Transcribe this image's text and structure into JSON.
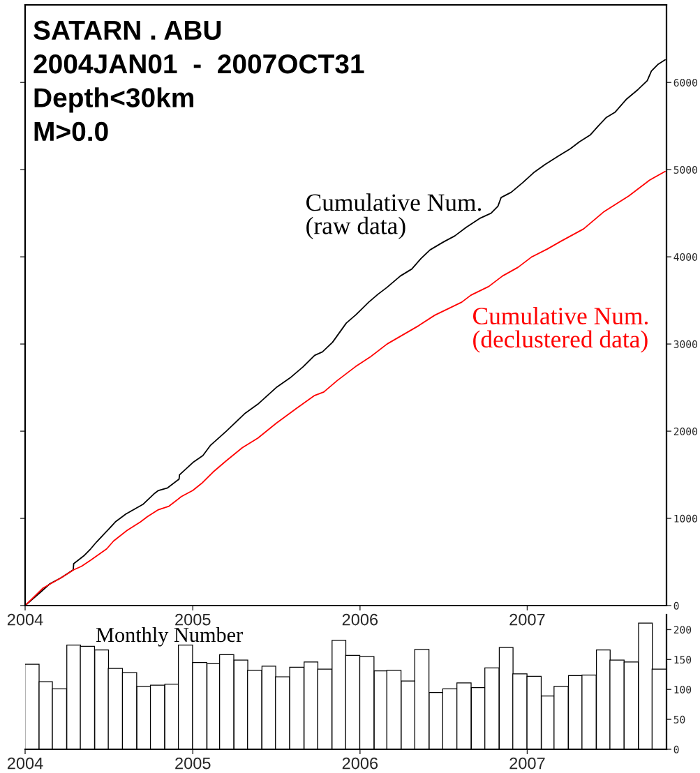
{
  "chart_data": [
    {
      "type": "line",
      "title": "SATARN . ABU\n2004JAN01  -  2007OCT31\nDepth<30km\nM>0.0",
      "xlim": [
        "2004-01-01",
        "2007-11-01"
      ],
      "xticks": [
        {
          "value": "2004-01-01",
          "label": "2004"
        },
        {
          "value": "2005-01-01",
          "label": "2005"
        },
        {
          "value": "2006-01-01",
          "label": "2006"
        },
        {
          "value": "2007-01-01",
          "label": "2007"
        }
      ],
      "ylim": [
        0,
        6890
      ],
      "yticks": [
        0,
        1000,
        2000,
        3000,
        4000,
        5000,
        6000
      ],
      "series": [
        {
          "name": "Cumulative Num.\n(raw data)",
          "color": "#000000",
          "x": [
            "2004-01-01",
            "2004-02-05",
            "2004-02-24",
            "2004-03-20",
            "2004-04-15",
            "2004-04-16",
            "2004-05-08",
            "2004-05-23",
            "2004-06-05",
            "2004-07-02",
            "2004-07-16",
            "2004-08-08",
            "2004-09-14",
            "2004-10-08",
            "2004-10-18",
            "2004-11-07",
            "2004-12-02",
            "2004-12-03",
            "2005-01-01",
            "2005-01-23",
            "2005-02-09",
            "2005-03-15",
            "2005-04-24",
            "2005-05-23",
            "2005-07-02",
            "2005-08-01",
            "2005-08-30",
            "2005-09-24",
            "2005-10-11",
            "2005-11-02",
            "2005-12-02",
            "2005-12-24",
            "2006-01-20",
            "2006-02-09",
            "2006-03-01",
            "2006-03-30",
            "2006-04-24",
            "2006-05-14",
            "2006-06-03",
            "2006-07-02",
            "2006-07-27",
            "2006-08-21",
            "2006-09-19",
            "2006-10-14",
            "2006-10-29",
            "2006-11-05",
            "2006-11-27",
            "2006-12-22",
            "2007-01-16",
            "2007-02-09",
            "2007-03-11",
            "2007-04-05",
            "2007-04-25",
            "2007-05-19",
            "2007-06-05",
            "2007-06-23",
            "2007-07-12",
            "2007-08-06",
            "2007-08-31",
            "2007-09-20",
            "2007-09-29",
            "2007-10-14",
            "2007-10-29"
          ],
          "values": [
            0,
            160,
            250,
            320,
            410,
            480,
            570,
            650,
            730,
            880,
            960,
            1050,
            1160,
            1280,
            1320,
            1350,
            1450,
            1500,
            1640,
            1720,
            1840,
            2000,
            2200,
            2310,
            2500,
            2610,
            2740,
            2870,
            2910,
            3020,
            3240,
            3340,
            3480,
            3570,
            3650,
            3780,
            3860,
            3980,
            4080,
            4170,
            4240,
            4340,
            4440,
            4500,
            4580,
            4680,
            4740,
            4850,
            4970,
            5060,
            5160,
            5240,
            5320,
            5400,
            5500,
            5600,
            5660,
            5810,
            5920,
            6020,
            6130,
            6210,
            6260
          ]
        },
        {
          "name": "Cumulative Num.\n(declustered data)",
          "color": "#ff0000",
          "x": [
            "2004-01-01",
            "2004-02-09",
            "2004-03-20",
            "2004-04-16",
            "2004-05-03",
            "2004-05-23",
            "2004-06-27",
            "2004-07-12",
            "2004-08-10",
            "2004-09-09",
            "2004-09-24",
            "2004-10-18",
            "2004-11-10",
            "2004-12-07",
            "2005-01-01",
            "2005-01-20",
            "2005-02-14",
            "2005-03-15",
            "2005-04-19",
            "2005-05-23",
            "2005-07-02",
            "2005-08-15",
            "2005-09-24",
            "2005-10-14",
            "2005-11-12",
            "2005-12-22",
            "2006-01-23",
            "2006-03-01",
            "2006-05-09",
            "2006-06-13",
            "2006-08-11",
            "2006-08-31",
            "2006-10-09",
            "2006-11-08",
            "2006-12-12",
            "2007-01-11",
            "2007-02-14",
            "2007-03-16",
            "2007-05-04",
            "2007-06-18",
            "2007-08-11",
            "2007-09-25",
            "2007-10-29"
          ],
          "values": [
            0,
            200,
            320,
            410,
            450,
            520,
            650,
            740,
            860,
            960,
            1020,
            1100,
            1140,
            1250,
            1320,
            1400,
            1530,
            1660,
            1810,
            1920,
            2090,
            2260,
            2410,
            2450,
            2580,
            2740,
            2850,
            3000,
            3210,
            3330,
            3480,
            3560,
            3660,
            3780,
            3880,
            4000,
            4090,
            4180,
            4320,
            4520,
            4700,
            4880,
            4980
          ]
        }
      ]
    },
    {
      "type": "bar",
      "annotations": [
        "Monthly Number"
      ],
      "color": "#ffffff",
      "x": [
        "2004-01-16",
        "2004-02-15",
        "2004-03-16",
        "2004-04-16",
        "2004-05-16",
        "2004-06-16",
        "2004-07-16",
        "2004-08-16",
        "2004-09-16",
        "2004-10-16",
        "2004-11-16",
        "2004-12-16",
        "2005-01-16",
        "2005-02-15",
        "2005-03-16",
        "2005-04-16",
        "2005-05-16",
        "2005-06-16",
        "2005-07-16",
        "2005-08-16",
        "2005-09-16",
        "2005-10-16",
        "2005-11-16",
        "2005-12-16",
        "2006-01-16",
        "2006-02-15",
        "2006-03-16",
        "2006-04-16",
        "2006-05-16",
        "2006-06-16",
        "2006-07-16",
        "2006-08-16",
        "2006-09-16",
        "2006-10-16",
        "2006-11-16",
        "2006-12-16",
        "2007-01-16",
        "2007-02-15",
        "2007-03-16",
        "2007-04-16",
        "2007-05-16",
        "2007-06-16",
        "2007-07-16",
        "2007-08-16",
        "2007-09-16",
        "2007-10-16"
      ],
      "values": [
        142,
        113,
        101,
        174,
        172,
        166,
        135,
        128,
        105,
        107,
        109,
        174,
        145,
        143,
        158,
        149,
        132,
        139,
        121,
        137,
        146,
        134,
        182,
        157,
        155,
        131,
        132,
        114,
        167,
        95,
        101,
        111,
        103,
        136,
        170,
        126,
        122,
        89,
        105,
        123,
        124,
        166,
        149,
        146,
        211,
        134
      ],
      "xlim": [
        "2004-01-01",
        "2007-11-01"
      ],
      "xticks": [
        {
          "value": "2004-01-01",
          "label": "2004"
        },
        {
          "value": "2005-01-01",
          "label": "2005"
        },
        {
          "value": "2006-01-01",
          "label": "2006"
        },
        {
          "value": "2007-01-01",
          "label": "2007"
        }
      ],
      "ylim": [
        0,
        225
      ],
      "yticks": [
        0,
        50,
        100,
        150,
        200
      ]
    }
  ]
}
